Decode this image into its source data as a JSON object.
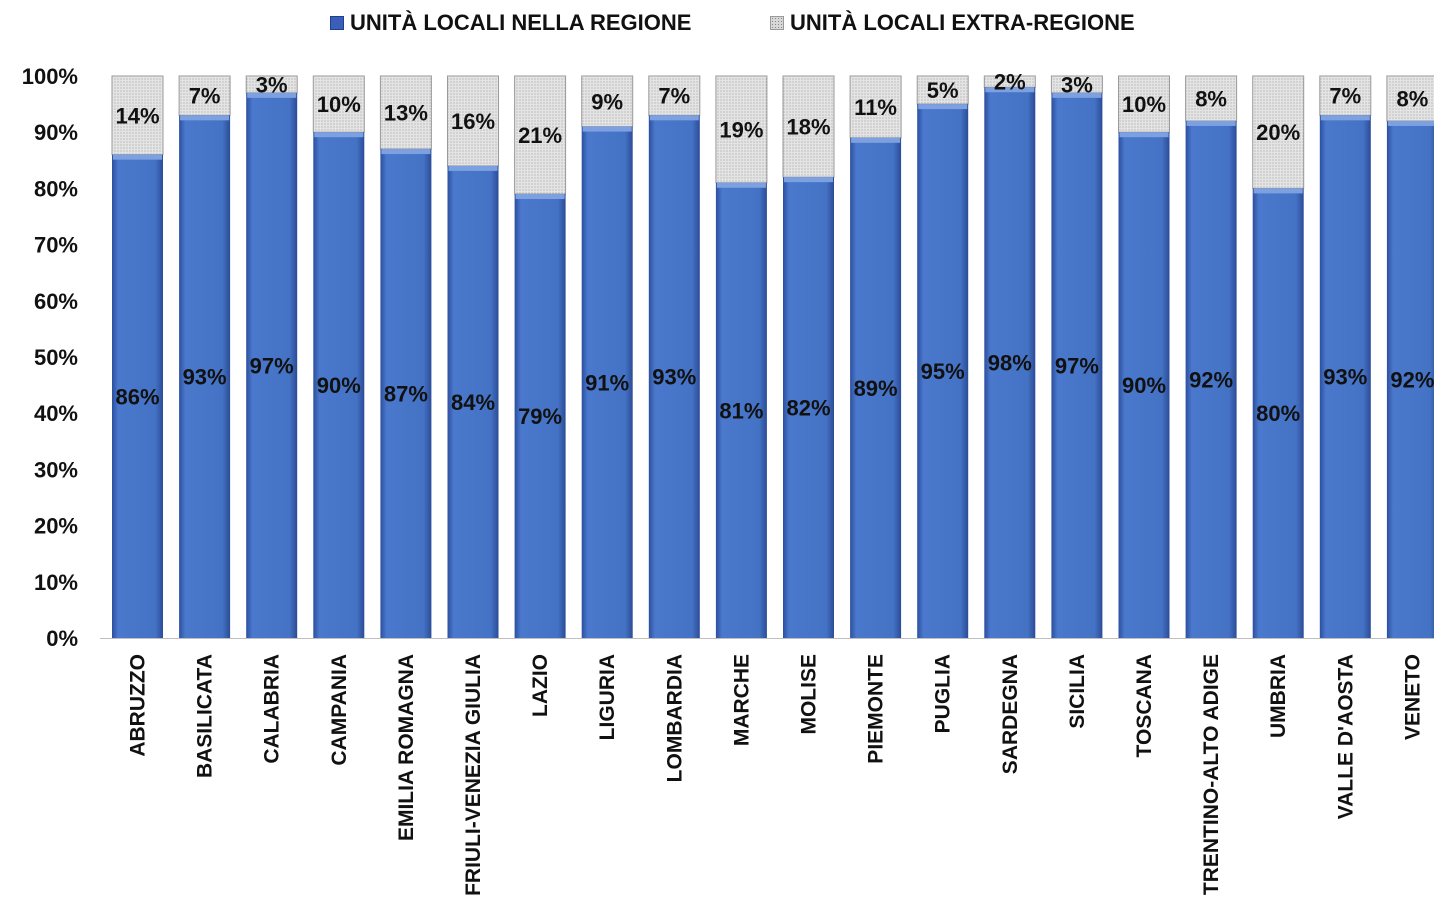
{
  "chart_data": {
    "type": "bar",
    "stacked": true,
    "categories": [
      "ABRUZZO",
      "BASILICATA",
      "CALABRIA",
      "CAMPANIA",
      "EMILIA ROMAGNA",
      "FRIULI-VENEZIA GIULIA",
      "LAZIO",
      "LIGURIA",
      "LOMBARDIA",
      "MARCHE",
      "MOLISE",
      "PIEMONTE",
      "PUGLIA",
      "SARDEGNA",
      "SICILIA",
      "TOSCANA",
      "TRENTINO-ALTO ADIGE",
      "UMBRIA",
      "VALLE D'AOSTA",
      "VENETO"
    ],
    "series": [
      {
        "name": "UNITÀ LOCALI NELLA REGIONE",
        "color": "#4472c4",
        "values": [
          86,
          93,
          97,
          90,
          87,
          84,
          79,
          91,
          93,
          81,
          82,
          89,
          95,
          98,
          97,
          90,
          92,
          80,
          93,
          92
        ]
      },
      {
        "name": "UNITÀ LOCALI EXTRA-REGIONE",
        "color": "#d9d9d9",
        "values": [
          14,
          7,
          3,
          10,
          13,
          16,
          21,
          9,
          7,
          19,
          18,
          11,
          5,
          2,
          3,
          10,
          8,
          20,
          7,
          8
        ]
      }
    ],
    "ylim": [
      0,
      100
    ],
    "yticks": [
      "0%",
      "10%",
      "20%",
      "30%",
      "40%",
      "50%",
      "60%",
      "70%",
      "80%",
      "90%",
      "100%"
    ],
    "legend_position": "top"
  }
}
